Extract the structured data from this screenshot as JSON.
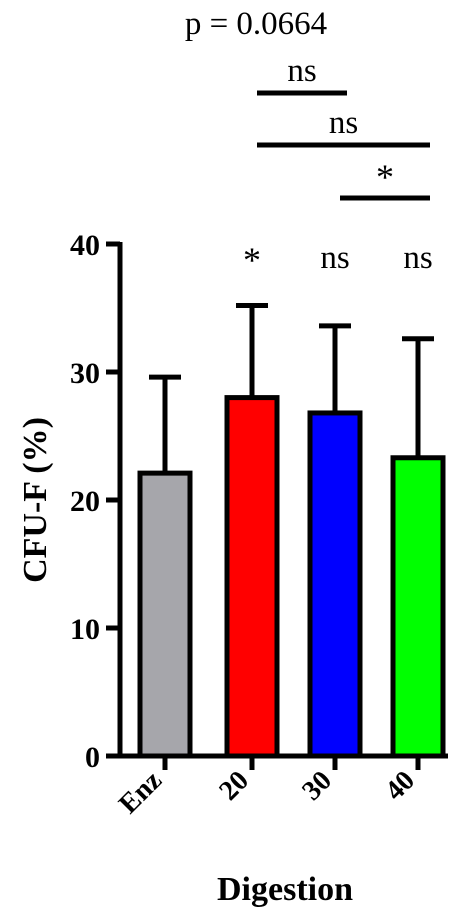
{
  "chart_data": {
    "type": "bar",
    "categories": [
      "Enz",
      "20",
      "30",
      "40"
    ],
    "values": [
      22.1,
      28.0,
      26.8,
      23.3
    ],
    "error_upper": [
      29.6,
      35.2,
      33.6,
      32.6
    ],
    "colors": [
      "#a6a6ab",
      "#ff0000",
      "#0000ff",
      "#00ff00"
    ],
    "ylabel": "CFU-F (%)",
    "xlabel": "Digestion",
    "ylim": [
      0,
      40
    ],
    "yticks": [
      "0",
      "10",
      "20",
      "30",
      "40"
    ],
    "bar_annotations": [
      "",
      "*",
      "ns",
      "ns"
    ],
    "p_value_text": "p = 0.0664",
    "comparisons": [
      {
        "from": 1,
        "to": 2,
        "label": "ns"
      },
      {
        "from": 1,
        "to": 3,
        "label": "ns"
      },
      {
        "from": 2,
        "to": 3,
        "label": "*"
      }
    ],
    "grid": false,
    "legend": "none"
  }
}
